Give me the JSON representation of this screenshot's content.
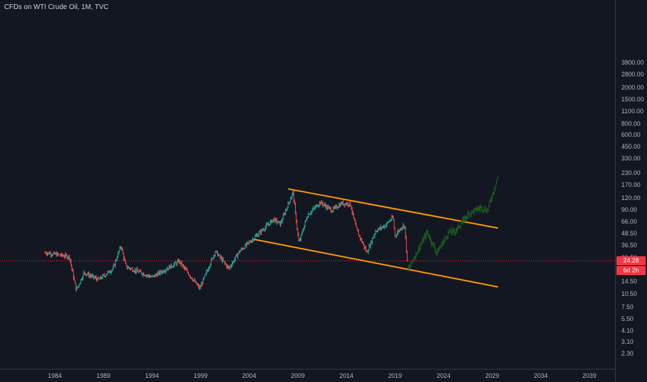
{
  "header": {
    "title": "CFDs on WTI Crude Oil, 1M, TVC"
  },
  "price_badge": {
    "value": "24.28",
    "countdown": "6d 2h"
  },
  "colors": {
    "background": "#131722",
    "up": "#26a69a",
    "down": "#ef5350",
    "projection": "#1b5e20",
    "channel": "#ff9800",
    "price_line": "#f23645"
  },
  "chart_data": {
    "type": "candlestick-ohlc",
    "title": "CFDs on WTI Crude Oil, 1M, TVC",
    "interval": "1M",
    "y_scale": "log",
    "ylim": [
      2.0,
      4200
    ],
    "xlim": [
      1982.0,
      2042.0
    ],
    "y_ticks": [
      "3800.00",
      "2800.00",
      "2000.00",
      "1500.00",
      "1100.00",
      "800.00",
      "600.00",
      "450.00",
      "330.00",
      "230.00",
      "170.00",
      "120.00",
      "90.00",
      "66.00",
      "48.50",
      "36.50",
      "26.50",
      "14.50",
      "10.50",
      "7.50",
      "5.50",
      "4.10",
      "3.10",
      "2.30"
    ],
    "x_ticks": [
      "1984",
      "1989",
      "1994",
      "1999",
      "2004",
      "2009",
      "2014",
      "2019",
      "2024",
      "2029",
      "2034",
      "2039"
    ],
    "last_price": 24.28,
    "history_anchors": [
      {
        "t": 1983.0,
        "v": 30
      },
      {
        "t": 1985.5,
        "v": 27
      },
      {
        "t": 1986.2,
        "v": 11.5
      },
      {
        "t": 1987.0,
        "v": 18
      },
      {
        "t": 1988.5,
        "v": 15
      },
      {
        "t": 1990.0,
        "v": 20
      },
      {
        "t": 1990.8,
        "v": 36
      },
      {
        "t": 1991.3,
        "v": 21
      },
      {
        "t": 1994.0,
        "v": 16
      },
      {
        "t": 1996.8,
        "v": 24
      },
      {
        "t": 1998.9,
        "v": 12
      },
      {
        "t": 2000.5,
        "v": 31
      },
      {
        "t": 2001.9,
        "v": 20
      },
      {
        "t": 2003.0,
        "v": 31
      },
      {
        "t": 2004.9,
        "v": 48
      },
      {
        "t": 2006.5,
        "v": 70
      },
      {
        "t": 2007.2,
        "v": 62
      },
      {
        "t": 2008.5,
        "v": 140
      },
      {
        "t": 2009.1,
        "v": 38
      },
      {
        "t": 2010.0,
        "v": 78
      },
      {
        "t": 2011.3,
        "v": 108
      },
      {
        "t": 2012.5,
        "v": 88
      },
      {
        "t": 2013.5,
        "v": 105
      },
      {
        "t": 2014.4,
        "v": 104
      },
      {
        "t": 2015.0,
        "v": 55
      },
      {
        "t": 2016.1,
        "v": 30
      },
      {
        "t": 2017.0,
        "v": 52
      },
      {
        "t": 2018.0,
        "v": 60
      },
      {
        "t": 2018.8,
        "v": 74
      },
      {
        "t": 2019.0,
        "v": 46
      },
      {
        "t": 2019.8,
        "v": 60
      },
      {
        "t": 2020.0,
        "v": 58
      },
      {
        "t": 2020.3,
        "v": 20
      }
    ],
    "projection_anchors": [
      {
        "t": 2020.3,
        "v": 19
      },
      {
        "t": 2020.9,
        "v": 26
      },
      {
        "t": 2022.3,
        "v": 50
      },
      {
        "t": 2023.3,
        "v": 30
      },
      {
        "t": 2024.5,
        "v": 50
      },
      {
        "t": 2025.2,
        "v": 52
      },
      {
        "t": 2026.5,
        "v": 80
      },
      {
        "t": 2027.8,
        "v": 95
      },
      {
        "t": 2028.5,
        "v": 88
      },
      {
        "t": 2029.6,
        "v": 210
      }
    ],
    "channel_lines": [
      {
        "name": "upper",
        "points": [
          {
            "t": 2008.0,
            "v": 152
          },
          {
            "t": 2029.6,
            "v": 56
          }
        ]
      },
      {
        "name": "lower",
        "points": [
          {
            "t": 2004.5,
            "v": 42
          },
          {
            "t": 2029.6,
            "v": 12.5
          }
        ]
      }
    ]
  }
}
